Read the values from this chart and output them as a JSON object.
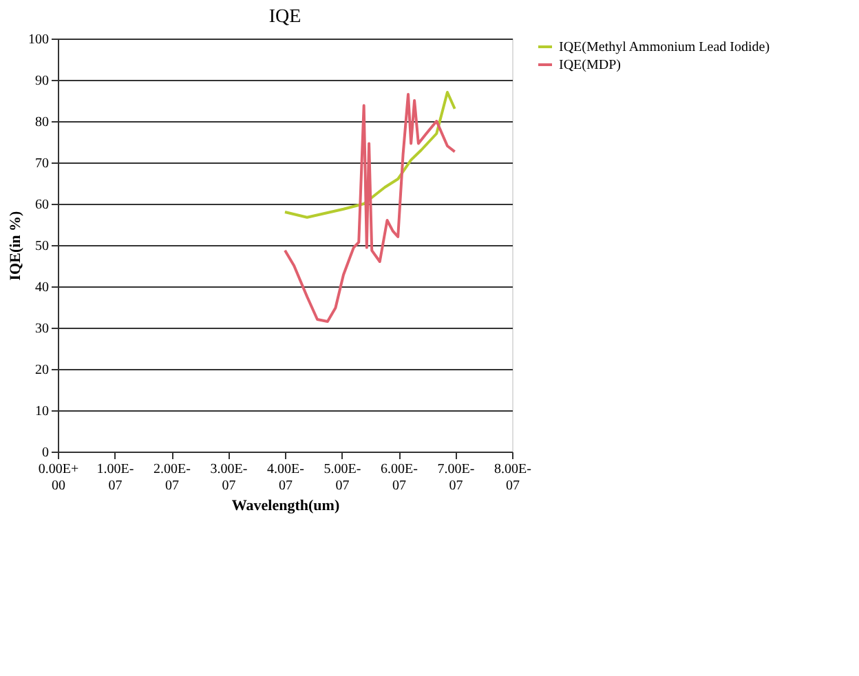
{
  "chart_data": {
    "type": "line",
    "title": "IQE",
    "xlabel": "Wavelength(um)",
    "ylabel": "IQE(in %)",
    "xlim": [
      0,
      8e-07
    ],
    "ylim": [
      0,
      100
    ],
    "xticks": [
      {
        "value": 0,
        "label": "0.00E+00"
      },
      {
        "value": 1e-07,
        "label": "1.00E-07"
      },
      {
        "value": 2e-07,
        "label": "2.00E-07"
      },
      {
        "value": 3e-07,
        "label": "3.00E-07"
      },
      {
        "value": 4e-07,
        "label": "4.00E-07"
      },
      {
        "value": 5e-07,
        "label": "5.00E-07"
      },
      {
        "value": 6e-07,
        "label": "6.00E-07"
      },
      {
        "value": 7e-07,
        "label": "7.00E-07"
      },
      {
        "value": 8e-07,
        "label": "8.00E-07"
      }
    ],
    "yticks": [
      0,
      10,
      20,
      30,
      40,
      50,
      60,
      70,
      80,
      90,
      100
    ],
    "grid": "y",
    "legend": "right",
    "marker": "none",
    "series": [
      {
        "name": "IQE(Methyl Ammonium Lead Iodide)",
        "color": "#b5cc2e",
        "x": [
          4e-07,
          4.39e-07,
          5.03e-07,
          5.39e-07,
          5.76e-07,
          5.99e-07,
          6.22e-07,
          6.4e-07,
          6.67e-07,
          6.86e-07,
          6.99e-07
        ],
        "values": [
          58,
          56.7,
          58.7,
          60,
          64,
          66,
          70.6,
          73,
          77,
          87,
          83
        ]
      },
      {
        "name": "IQE(MDP)",
        "color": "#e0606e",
        "x": [
          4e-07,
          4.16e-07,
          4.39e-07,
          4.57e-07,
          4.75e-07,
          4.89e-07,
          5.03e-07,
          5.21e-07,
          5.3e-07,
          5.39e-07,
          5.44e-07,
          5.48e-07,
          5.53e-07,
          5.67e-07,
          5.8e-07,
          5.9e-07,
          5.99e-07,
          6.08e-07,
          6.17e-07,
          6.22e-07,
          6.28e-07,
          6.35e-07,
          6.49e-07,
          6.67e-07,
          6.86e-07,
          6.99e-07
        ],
        "values": [
          48.7,
          45,
          37.5,
          32,
          31.5,
          34.8,
          42.8,
          49.4,
          50.7,
          83.8,
          49.4,
          74.6,
          48.7,
          46,
          56,
          53.4,
          52,
          72,
          86.5,
          74.6,
          85,
          74.6,
          77,
          80,
          74,
          72.6
        ]
      }
    ]
  }
}
